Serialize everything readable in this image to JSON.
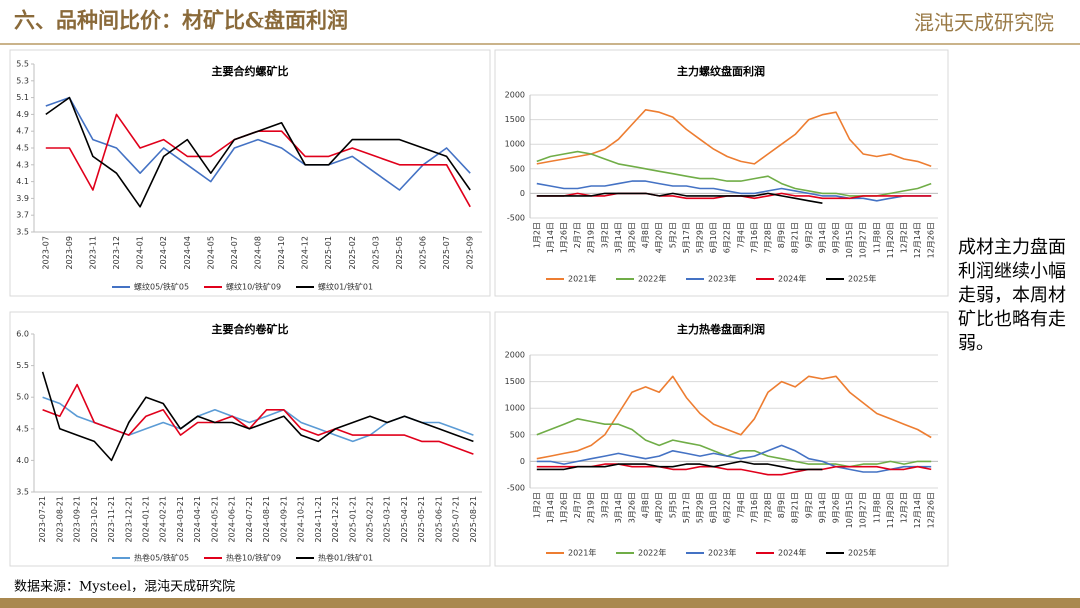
{
  "header": {
    "title": "六、品种间比价：材矿比&盘面利润",
    "logo": "混沌天成研究院"
  },
  "note": "成材主力盘面利润继续小幅走弱，本周材矿比也略有走弱。",
  "source": "数据来源：Mysteel，混沌天成研究院",
  "chart_data": [
    {
      "type": "line",
      "title": "主要合约螺矿比",
      "grid": false,
      "categories": [
        "2023-07",
        "2023-09",
        "2023-11",
        "2023-12",
        "2024-01",
        "2024-02",
        "2024-04",
        "2024-05",
        "2024-07",
        "2024-08",
        "2024-10",
        "2024-12",
        "2025-01",
        "2025-02",
        "2025-03",
        "2025-05",
        "2025-06",
        "2025-07",
        "2025-09"
      ],
      "ylim": [
        3.5,
        5.5
      ],
      "yticks": [
        3.5,
        3.7,
        3.9,
        4.1,
        4.3,
        4.5,
        4.7,
        4.9,
        5.1,
        5.3,
        5.5
      ],
      "series": [
        {
          "name": "螺纹05/铁矿05",
          "color": "#4472c4",
          "values": [
            5.0,
            5.1,
            4.6,
            4.5,
            4.2,
            4.5,
            4.3,
            4.1,
            4.5,
            4.6,
            4.5,
            4.3,
            4.3,
            4.4,
            4.2,
            4.0,
            4.3,
            4.5,
            4.2
          ]
        },
        {
          "name": "螺纹10/铁矿09",
          "color": "#e0001b",
          "values": [
            4.5,
            4.5,
            4.0,
            4.9,
            4.5,
            4.6,
            4.4,
            4.4,
            4.6,
            4.7,
            4.7,
            4.4,
            4.4,
            4.5,
            4.4,
            4.3,
            4.3,
            4.3,
            3.8
          ]
        },
        {
          "name": "螺纹01/铁矿01",
          "color": "#000000",
          "values": [
            4.9,
            5.1,
            4.4,
            4.2,
            3.8,
            4.4,
            4.6,
            4.2,
            4.6,
            4.7,
            4.8,
            4.3,
            4.3,
            4.6,
            4.6,
            4.6,
            4.5,
            4.4,
            4.0
          ]
        }
      ]
    },
    {
      "type": "line",
      "title": "主力螺纹盘面利润",
      "grid": true,
      "categories": [
        "1月2日",
        "1月14日",
        "1月26日",
        "2月7日",
        "2月19日",
        "3月2日",
        "3月14日",
        "3月26日",
        "4月8日",
        "4月20日",
        "5月2日",
        "5月17日",
        "5月29日",
        "6月10日",
        "6月22日",
        "7月4日",
        "7月16日",
        "7月28日",
        "8月9日",
        "8月21日",
        "9月2日",
        "9月14日",
        "9月26日",
        "10月15日",
        "10月27日",
        "11月8日",
        "11月20日",
        "12月2日",
        "12月14日",
        "12月26日"
      ],
      "ylim": [
        -500,
        2000
      ],
      "yticks": [
        -500,
        0,
        500,
        1000,
        1500,
        2000
      ],
      "series": [
        {
          "name": "2021年",
          "color": "#ed7d31",
          "values": [
            600,
            650,
            700,
            750,
            800,
            900,
            1100,
            1400,
            1700,
            1650,
            1550,
            1300,
            1100,
            900,
            750,
            650,
            600,
            800,
            1000,
            1200,
            1500,
            1600,
            1650,
            1100,
            800,
            750,
            800,
            700,
            650,
            550
          ]
        },
        {
          "name": "2022年",
          "color": "#70ad47",
          "values": [
            650,
            750,
            800,
            850,
            800,
            700,
            600,
            550,
            500,
            450,
            400,
            350,
            300,
            300,
            250,
            250,
            300,
            350,
            200,
            100,
            50,
            0,
            0,
            -50,
            -50,
            -50,
            0,
            50,
            100,
            200
          ]
        },
        {
          "name": "2023年",
          "color": "#4472c4",
          "values": [
            200,
            150,
            100,
            100,
            150,
            150,
            200,
            250,
            250,
            200,
            150,
            150,
            100,
            100,
            50,
            0,
            0,
            50,
            100,
            50,
            0,
            -50,
            -50,
            -100,
            -100,
            -150,
            -100,
            -50,
            -50,
            -50
          ]
        },
        {
          "name": "2024年",
          "color": "#e0001b",
          "values": [
            -50,
            -50,
            -50,
            0,
            -50,
            -50,
            0,
            0,
            0,
            -50,
            -50,
            -100,
            -100,
            -100,
            -50,
            -50,
            -100,
            -50,
            0,
            -50,
            -50,
            -100,
            -100,
            -100,
            -50,
            -50,
            -50,
            -50,
            -50,
            -50
          ]
        },
        {
          "name": "2025年",
          "color": "#000000",
          "values": [
            -50,
            -50,
            -50,
            -50,
            -50,
            0,
            0,
            0,
            0,
            -50,
            0,
            -50,
            -50,
            -50,
            -50,
            -50,
            -50,
            0,
            -50,
            -100,
            -150,
            -200,
            null,
            null,
            null,
            null,
            null,
            null,
            null,
            null
          ]
        }
      ]
    },
    {
      "type": "line",
      "title": "主要合约卷矿比",
      "grid": false,
      "categories": [
        "2023-07-21",
        "2023-08-21",
        "2023-09-21",
        "2023-10-21",
        "2023-11-21",
        "2023-12-21",
        "2024-01-21",
        "2024-02-21",
        "2024-03-21",
        "2024-04-21",
        "2024-05-21",
        "2024-06-21",
        "2024-07-21",
        "2024-08-21",
        "2024-09-21",
        "2024-10-21",
        "2024-11-21",
        "2024-12-21",
        "2025-01-21",
        "2025-02-21",
        "2025-03-21",
        "2025-04-21",
        "2025-05-21",
        "2025-06-21",
        "2025-07-21",
        "2025-08-21"
      ],
      "ylim": [
        3.5,
        6.0
      ],
      "yticks": [
        3.5,
        {
          "value": 4,
          "label": "4.0"
        },
        4.5,
        {
          "value": 5,
          "label": "5.0"
        },
        5.5,
        {
          "value": 6,
          "label": "6.0"
        }
      ],
      "series": [
        {
          "name": "热卷05/铁矿05",
          "color": "#5b9bd5",
          "values": [
            5.0,
            4.9,
            4.7,
            4.6,
            4.5,
            4.4,
            4.5,
            4.6,
            4.5,
            4.7,
            4.8,
            4.7,
            4.6,
            4.7,
            4.8,
            4.6,
            4.5,
            4.4,
            4.3,
            4.4,
            4.6,
            4.7,
            4.6,
            4.6,
            4.5,
            4.4
          ]
        },
        {
          "name": "热卷10/铁矿09",
          "color": "#e0001b",
          "values": [
            4.8,
            4.7,
            5.2,
            4.6,
            4.5,
            4.4,
            4.7,
            4.8,
            4.4,
            4.6,
            4.6,
            4.7,
            4.5,
            4.8,
            4.8,
            4.5,
            4.4,
            4.5,
            4.4,
            4.4,
            4.4,
            4.4,
            4.3,
            4.3,
            4.2,
            4.1
          ]
        },
        {
          "name": "热卷01/铁矿01",
          "color": "#000000",
          "values": [
            5.4,
            4.5,
            4.4,
            4.3,
            4.0,
            4.6,
            5.0,
            4.9,
            4.5,
            4.7,
            4.6,
            4.6,
            4.5,
            4.6,
            4.7,
            4.4,
            4.3,
            4.5,
            4.6,
            4.7,
            4.6,
            4.7,
            4.6,
            4.5,
            4.4,
            4.3
          ]
        }
      ]
    },
    {
      "type": "line",
      "title": "主力热卷盘面利润",
      "grid": true,
      "categories": [
        "1月2日",
        "1月14日",
        "1月26日",
        "2月7日",
        "2月19日",
        "3月2日",
        "3月14日",
        "3月26日",
        "4月8日",
        "4月20日",
        "5月5日",
        "5月17日",
        "5月29日",
        "6月10日",
        "6月22日",
        "7月4日",
        "7月16日",
        "7月28日",
        "8月9日",
        "8月21日",
        "9月2日",
        "9月14日",
        "9月26日",
        "10月15日",
        "10月27日",
        "11月8日",
        "11月20日",
        "12月2日",
        "12月14日",
        "12月26日"
      ],
      "ylim": [
        -500,
        2000
      ],
      "yticks": [
        -500,
        0,
        500,
        1000,
        1500,
        2000
      ],
      "series": [
        {
          "name": "2021年",
          "color": "#ed7d31",
          "values": [
            50,
            100,
            150,
            200,
            300,
            500,
            900,
            1300,
            1400,
            1300,
            1600,
            1200,
            900,
            700,
            600,
            500,
            800,
            1300,
            1500,
            1400,
            1600,
            1550,
            1600,
            1300,
            1100,
            900,
            800,
            700,
            600,
            450
          ]
        },
        {
          "name": "2022年",
          "color": "#70ad47",
          "values": [
            500,
            600,
            700,
            800,
            750,
            700,
            700,
            600,
            400,
            300,
            400,
            350,
            300,
            200,
            100,
            200,
            200,
            100,
            50,
            0,
            -50,
            -50,
            -50,
            -100,
            -50,
            -50,
            0,
            -50,
            0,
            0
          ]
        },
        {
          "name": "2023年",
          "color": "#4472c4",
          "values": [
            0,
            0,
            -50,
            0,
            50,
            100,
            150,
            100,
            50,
            100,
            200,
            150,
            100,
            150,
            100,
            50,
            100,
            200,
            300,
            200,
            50,
            0,
            -100,
            -150,
            -200,
            -200,
            -150,
            -100,
            -100,
            -100
          ]
        },
        {
          "name": "2024年",
          "color": "#e0001b",
          "values": [
            -100,
            -100,
            -100,
            -100,
            -100,
            -50,
            -50,
            -100,
            -100,
            -100,
            -150,
            -150,
            -100,
            -100,
            -150,
            -150,
            -200,
            -250,
            -250,
            -200,
            -150,
            -150,
            -100,
            -100,
            -100,
            -100,
            -150,
            -150,
            -100,
            -150
          ]
        },
        {
          "name": "2025年",
          "color": "#000000",
          "values": [
            -150,
            -150,
            -150,
            -100,
            -100,
            -100,
            -50,
            -50,
            -50,
            -100,
            -100,
            -50,
            -50,
            -100,
            -50,
            0,
            -50,
            -50,
            -100,
            -150,
            -150,
            -150,
            null,
            null,
            null,
            null,
            null,
            null,
            null,
            null
          ]
        }
      ]
    }
  ]
}
